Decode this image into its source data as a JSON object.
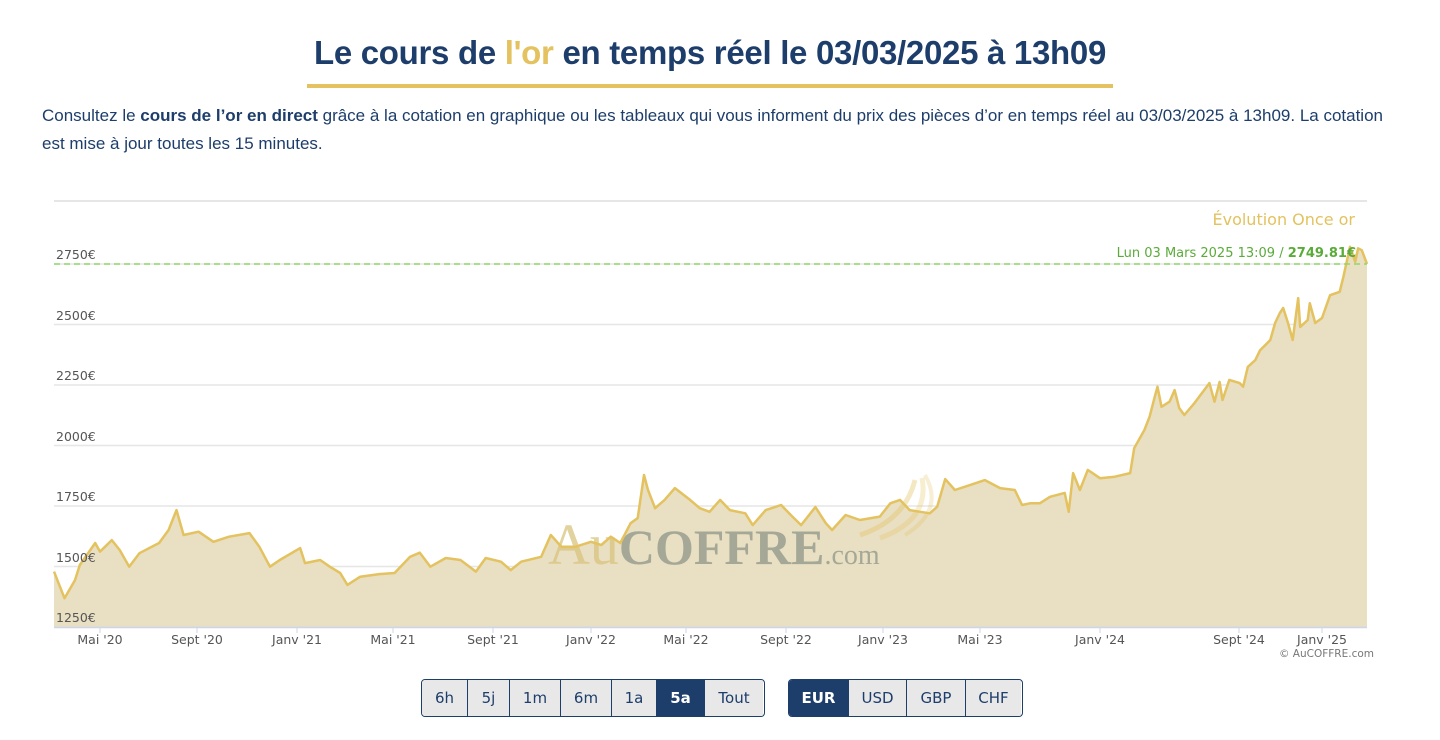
{
  "header": {
    "title_before": "Le cours de ",
    "title_highlight": "l'or",
    "title_after": " en temps réel le 03/03/2025 à 13h09"
  },
  "intro": {
    "text_before": "Consultez le ",
    "text_bold": "cours de l’or en direct",
    "text_after": " grâce à la cotation en graphique ou les tableaux qui vous informent du prix des pièces d’or en temps réel au 03/03/2025 à 13h09. La cotation est mise à jour toutes les 15 minutes."
  },
  "colors": {
    "navy": "#1d3d6b",
    "gold": "#e3c25f",
    "area_fill": "#e9dfc2",
    "last_price_green": "#5aab3a"
  },
  "chart_data": {
    "type": "area",
    "title": "Évolution Once or",
    "last_point_label": {
      "date": "Lun 03 Mars 2025 13:09",
      "separator": " / ",
      "value": "2749.81€"
    },
    "credits": "© AuCOFFRE.com",
    "watermark": {
      "part1": "Au",
      "part2": "COFFRE",
      "part3": ".com"
    },
    "ylim": [
      1250,
      2850
    ],
    "y_ticks": [
      "1250€",
      "1500€",
      "1750€",
      "2000€",
      "2250€",
      "2500€",
      "2750€"
    ],
    "y_tick_values": [
      1250,
      1500,
      1750,
      2000,
      2250,
      2500,
      2750
    ],
    "x_ticks": [
      {
        "label": "Mai '20",
        "date": "2020-05-01"
      },
      {
        "label": "Sept '20",
        "date": "2020-09-01"
      },
      {
        "label": "Janv '21",
        "date": "2021-01-01"
      },
      {
        "label": "Mai '21",
        "date": "2021-05-01"
      },
      {
        "label": "Sept '21",
        "date": "2021-09-01"
      },
      {
        "label": "Janv '22",
        "date": "2022-01-01"
      },
      {
        "label": "Mai '22",
        "date": "2022-05-01"
      },
      {
        "label": "Sept '22",
        "date": "2022-09-01"
      },
      {
        "label": "Janv '23",
        "date": "2023-01-01"
      },
      {
        "label": "Mai '23",
        "date": "2023-05-01"
      },
      {
        "label": "Janv '24",
        "date": "2024-01-01"
      },
      {
        "label": "Sept '24",
        "date": "2024-09-01"
      },
      {
        "label": "Janv '25",
        "date": "2025-01-01"
      }
    ],
    "grid": true,
    "series": [
      {
        "name": "Once or",
        "unit": "€",
        "points": [
          [
            "2020-03-05",
            1479
          ],
          [
            "2020-03-18",
            1369
          ],
          [
            "2020-03-31",
            1444
          ],
          [
            "2020-04-06",
            1506
          ],
          [
            "2020-04-25",
            1597
          ],
          [
            "2020-05-01",
            1561
          ],
          [
            "2020-05-16",
            1609
          ],
          [
            "2020-05-26",
            1568
          ],
          [
            "2020-06-07",
            1499
          ],
          [
            "2020-06-20",
            1555
          ],
          [
            "2020-07-15",
            1597
          ],
          [
            "2020-07-27",
            1651
          ],
          [
            "2020-08-06",
            1733
          ],
          [
            "2020-08-15",
            1630
          ],
          [
            "2020-09-03",
            1644
          ],
          [
            "2020-09-21",
            1602
          ],
          [
            "2020-10-10",
            1623
          ],
          [
            "2020-11-04",
            1638
          ],
          [
            "2020-11-16",
            1582
          ],
          [
            "2020-11-29",
            1499
          ],
          [
            "2020-12-11",
            1527
          ],
          [
            "2021-01-05",
            1576
          ],
          [
            "2021-01-11",
            1514
          ],
          [
            "2021-01-30",
            1527
          ],
          [
            "2021-02-11",
            1499
          ],
          [
            "2021-02-24",
            1473
          ],
          [
            "2021-03-05",
            1424
          ],
          [
            "2021-03-21",
            1458
          ],
          [
            "2021-04-15",
            1469
          ],
          [
            "2021-05-03",
            1473
          ],
          [
            "2021-05-22",
            1540
          ],
          [
            "2021-06-03",
            1557
          ],
          [
            "2021-06-16",
            1499
          ],
          [
            "2021-07-05",
            1535
          ],
          [
            "2021-07-23",
            1527
          ],
          [
            "2021-08-11",
            1479
          ],
          [
            "2021-08-23",
            1535
          ],
          [
            "2021-09-11",
            1520
          ],
          [
            "2021-09-23",
            1485
          ],
          [
            "2021-10-06",
            1520
          ],
          [
            "2021-10-31",
            1540
          ],
          [
            "2021-11-12",
            1630
          ],
          [
            "2021-11-25",
            1582
          ],
          [
            "2021-12-13",
            1582
          ],
          [
            "2022-01-01",
            1602
          ],
          [
            "2022-01-14",
            1589
          ],
          [
            "2022-01-26",
            1623
          ],
          [
            "2022-02-07",
            1597
          ],
          [
            "2022-02-20",
            1679
          ],
          [
            "2022-03-01",
            1700
          ],
          [
            "2022-03-09",
            1878
          ],
          [
            "2022-03-14",
            1816
          ],
          [
            "2022-03-23",
            1741
          ],
          [
            "2022-04-04",
            1775
          ],
          [
            "2022-04-17",
            1824
          ],
          [
            "2022-05-06",
            1775
          ],
          [
            "2022-05-18",
            1741
          ],
          [
            "2022-05-30",
            1726
          ],
          [
            "2022-06-12",
            1775
          ],
          [
            "2022-06-24",
            1733
          ],
          [
            "2022-07-13",
            1720
          ],
          [
            "2022-07-22",
            1671
          ],
          [
            "2022-08-07",
            1733
          ],
          [
            "2022-08-26",
            1754
          ],
          [
            "2022-09-07",
            1713
          ],
          [
            "2022-09-20",
            1671
          ],
          [
            "2022-10-08",
            1746
          ],
          [
            "2022-10-21",
            1679
          ],
          [
            "2022-10-29",
            1651
          ],
          [
            "2022-11-15",
            1713
          ],
          [
            "2022-12-03",
            1692
          ],
          [
            "2022-12-28",
            1706
          ],
          [
            "2023-01-10",
            1761
          ],
          [
            "2023-01-22",
            1775
          ],
          [
            "2023-02-03",
            1733
          ],
          [
            "2023-02-16",
            1726
          ],
          [
            "2023-02-28",
            1720
          ],
          [
            "2023-03-09",
            1747
          ],
          [
            "2023-03-19",
            1861
          ],
          [
            "2023-03-31",
            1816
          ],
          [
            "2023-04-19",
            1837
          ],
          [
            "2023-05-11",
            1857
          ],
          [
            "2023-06-11",
            1824
          ],
          [
            "2023-07-11",
            1816
          ],
          [
            "2023-07-26",
            1754
          ],
          [
            "2023-08-11",
            1761
          ],
          [
            "2023-08-31",
            1761
          ],
          [
            "2023-09-21",
            1788
          ],
          [
            "2023-10-21",
            1804
          ],
          [
            "2023-10-29",
            1726
          ],
          [
            "2023-11-07",
            1886
          ],
          [
            "2023-11-21",
            1816
          ],
          [
            "2023-12-07",
            1899
          ],
          [
            "2024-01-01",
            1865
          ],
          [
            "2024-01-27",
            1871
          ],
          [
            "2024-02-23",
            1886
          ],
          [
            "2024-03-01",
            1989
          ],
          [
            "2024-03-19",
            2064
          ],
          [
            "2024-03-28",
            2119
          ],
          [
            "2024-04-06",
            2201
          ],
          [
            "2024-04-11",
            2243
          ],
          [
            "2024-04-18",
            2160
          ],
          [
            "2024-05-02",
            2181
          ],
          [
            "2024-05-11",
            2229
          ],
          [
            "2024-05-19",
            2155
          ],
          [
            "2024-05-28",
            2126
          ],
          [
            "2024-06-15",
            2176
          ],
          [
            "2024-07-11",
            2258
          ],
          [
            "2024-07-20",
            2181
          ],
          [
            "2024-07-29",
            2263
          ],
          [
            "2024-08-03",
            2188
          ],
          [
            "2024-08-15",
            2271
          ],
          [
            "2024-09-02",
            2258
          ],
          [
            "2024-09-07",
            2243
          ],
          [
            "2024-09-14",
            2325
          ],
          [
            "2024-09-25",
            2353
          ],
          [
            "2024-10-02",
            2394
          ],
          [
            "2024-10-17",
            2436
          ],
          [
            "2024-10-24",
            2506
          ],
          [
            "2024-10-31",
            2547
          ],
          [
            "2024-11-05",
            2568
          ],
          [
            "2024-11-12",
            2506
          ],
          [
            "2024-11-19",
            2436
          ],
          [
            "2024-11-27",
            2609
          ],
          [
            "2024-11-30",
            2490
          ],
          [
            "2024-12-11",
            2518
          ],
          [
            "2024-12-14",
            2588
          ],
          [
            "2024-12-22",
            2506
          ],
          [
            "2025-01-01",
            2527
          ],
          [
            "2025-01-12",
            2621
          ],
          [
            "2025-01-25",
            2635
          ],
          [
            "2025-01-30",
            2697
          ],
          [
            "2025-02-08",
            2821
          ],
          [
            "2025-02-15",
            2759
          ],
          [
            "2025-02-19",
            2815
          ],
          [
            "2025-02-24",
            2807
          ],
          [
            "2025-03-03",
            2749.81
          ]
        ]
      }
    ],
    "last_value": 2749.81
  },
  "range_selector": {
    "buttons": [
      "6h",
      "5j",
      "1m",
      "6m",
      "1a",
      "5a",
      "Tout"
    ],
    "active": "5a"
  },
  "currency_selector": {
    "buttons": [
      "EUR",
      "USD",
      "GBP",
      "CHF"
    ],
    "active": "EUR"
  }
}
